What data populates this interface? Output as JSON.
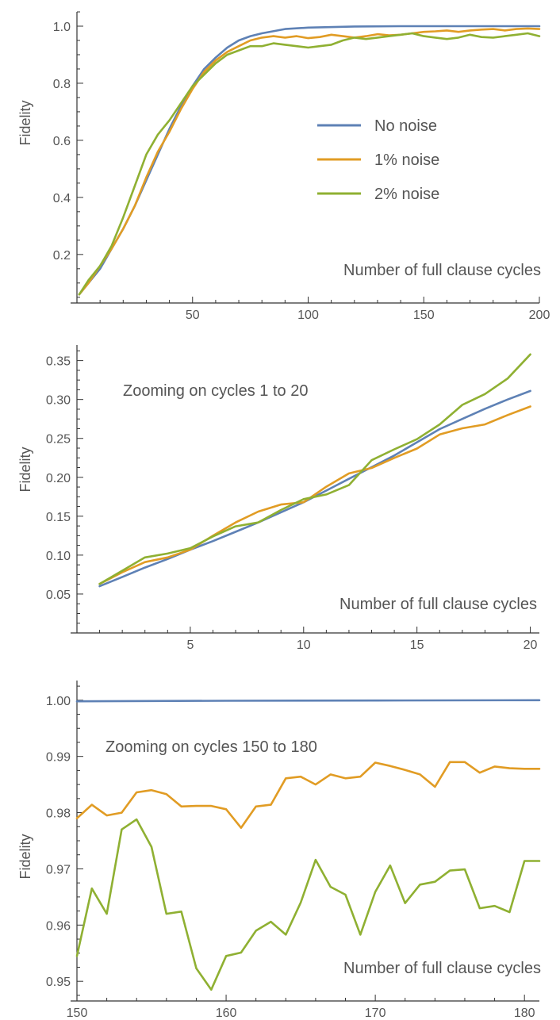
{
  "chart_data": [
    {
      "type": "line",
      "xlabel": "Number of full clause cycles",
      "ylabel": "Fidelity",
      "xlim": [
        0,
        200
      ],
      "ylim": [
        0.03,
        1.05
      ],
      "xticks": [
        50,
        100,
        150,
        200
      ],
      "yticks": [
        0.2,
        0.4,
        0.6,
        0.8,
        1.0
      ],
      "ytick_labels": [
        "0.2",
        "0.4",
        "0.6",
        "0.8",
        "1.0"
      ],
      "legend": {
        "position": "center-right",
        "entries": [
          "No noise",
          "1% noise",
          "2% noise"
        ]
      },
      "series": [
        {
          "name": "No noise",
          "color": "#5e81b5",
          "x": [
            1,
            5,
            10,
            15,
            20,
            25,
            30,
            35,
            40,
            45,
            50,
            55,
            60,
            65,
            70,
            75,
            80,
            90,
            100,
            120,
            140,
            160,
            180,
            200
          ],
          "y": [
            0.06,
            0.1,
            0.15,
            0.22,
            0.29,
            0.37,
            0.46,
            0.55,
            0.64,
            0.72,
            0.79,
            0.85,
            0.89,
            0.925,
            0.95,
            0.965,
            0.975,
            0.99,
            0.995,
            0.999,
            1.0,
            1.0,
            1.0,
            1.0
          ]
        },
        {
          "name": "1% noise",
          "color": "#e19c24",
          "x": [
            1,
            5,
            10,
            15,
            20,
            25,
            30,
            35,
            40,
            45,
            50,
            55,
            60,
            65,
            70,
            75,
            80,
            85,
            90,
            95,
            100,
            105,
            110,
            115,
            120,
            125,
            130,
            135,
            140,
            145,
            150,
            155,
            160,
            165,
            170,
            175,
            180,
            185,
            190,
            195,
            200
          ],
          "y": [
            0.06,
            0.1,
            0.16,
            0.22,
            0.29,
            0.37,
            0.47,
            0.56,
            0.63,
            0.71,
            0.78,
            0.84,
            0.88,
            0.91,
            0.93,
            0.95,
            0.96,
            0.965,
            0.96,
            0.965,
            0.958,
            0.962,
            0.97,
            0.965,
            0.96,
            0.965,
            0.972,
            0.968,
            0.97,
            0.975,
            0.98,
            0.982,
            0.985,
            0.98,
            0.985,
            0.988,
            0.99,
            0.985,
            0.99,
            0.992,
            0.99
          ]
        },
        {
          "name": "2% noise",
          "color": "#8fb032",
          "x": [
            1,
            5,
            10,
            15,
            20,
            25,
            30,
            35,
            40,
            45,
            50,
            55,
            60,
            65,
            70,
            75,
            80,
            85,
            90,
            95,
            100,
            105,
            110,
            115,
            120,
            125,
            130,
            135,
            140,
            145,
            150,
            155,
            160,
            165,
            170,
            175,
            180,
            185,
            190,
            195,
            200
          ],
          "y": [
            0.06,
            0.11,
            0.16,
            0.23,
            0.33,
            0.44,
            0.55,
            0.62,
            0.67,
            0.73,
            0.79,
            0.83,
            0.87,
            0.9,
            0.915,
            0.93,
            0.93,
            0.94,
            0.935,
            0.93,
            0.925,
            0.93,
            0.935,
            0.95,
            0.96,
            0.955,
            0.96,
            0.965,
            0.97,
            0.975,
            0.965,
            0.96,
            0.955,
            0.96,
            0.97,
            0.962,
            0.96,
            0.965,
            0.97,
            0.975,
            0.965
          ]
        }
      ],
      "annotations": [
        "Number of full clause cycles"
      ]
    },
    {
      "type": "line",
      "xlabel": "Number of full clause cycles",
      "ylabel": "Fidelity",
      "xlim": [
        0,
        20.4
      ],
      "ylim": [
        0.0,
        0.37
      ],
      "xticks": [
        5,
        10,
        15,
        20
      ],
      "yticks": [
        0.05,
        0.1,
        0.15,
        0.2,
        0.25,
        0.3,
        0.35
      ],
      "ytick_labels": [
        "0.05",
        "0.10",
        "0.15",
        "0.20",
        "0.25",
        "0.30",
        "0.35"
      ],
      "title": "Zooming on cycles 1 to 20",
      "series": [
        {
          "name": "No noise",
          "color": "#5e81b5",
          "x": [
            1,
            2,
            3,
            4,
            5,
            6,
            7,
            8,
            9,
            10,
            11,
            12,
            13,
            14,
            15,
            16,
            17,
            18,
            19,
            20
          ],
          "y": [
            0.06,
            0.072,
            0.084,
            0.095,
            0.107,
            0.118,
            0.13,
            0.142,
            0.155,
            0.168,
            0.183,
            0.198,
            0.213,
            0.228,
            0.245,
            0.262,
            0.275,
            0.288,
            0.3,
            0.311
          ]
        },
        {
          "name": "1% noise",
          "color": "#e19c24",
          "x": [
            1,
            2,
            3,
            4,
            5,
            6,
            7,
            8,
            9,
            10,
            11,
            12,
            13,
            14,
            15,
            16,
            17,
            18,
            19,
            20
          ],
          "y": [
            0.063,
            0.078,
            0.091,
            0.097,
            0.107,
            0.125,
            0.142,
            0.156,
            0.165,
            0.168,
            0.188,
            0.205,
            0.212,
            0.225,
            0.237,
            0.255,
            0.263,
            0.268,
            0.28,
            0.291
          ]
        },
        {
          "name": "2% noise",
          "color": "#8fb032",
          "x": [
            1,
            2,
            3,
            4,
            5,
            6,
            7,
            8,
            9,
            10,
            11,
            12,
            13,
            14,
            15,
            16,
            17,
            18,
            19,
            20
          ],
          "y": [
            0.063,
            0.08,
            0.097,
            0.102,
            0.109,
            0.124,
            0.137,
            0.142,
            0.158,
            0.172,
            0.178,
            0.19,
            0.222,
            0.236,
            0.249,
            0.268,
            0.293,
            0.307,
            0.327,
            0.358
          ]
        }
      ],
      "annotations": [
        "Number of full clause cycles"
      ]
    },
    {
      "type": "line",
      "xlabel": "Number of full clause cycles",
      "ylabel": "Fidelity",
      "xlim": [
        150,
        181
      ],
      "ylim": [
        0.9465,
        1.0035
      ],
      "xticks": [
        150,
        160,
        170,
        180
      ],
      "yticks": [
        0.95,
        0.96,
        0.97,
        0.98,
        0.99,
        1.0
      ],
      "ytick_labels": [
        "0.95",
        "0.96",
        "0.97",
        "0.98",
        "0.99",
        "1.00"
      ],
      "title": "Zooming on cycles 150 to 180",
      "series": [
        {
          "name": "No noise",
          "color": "#5e81b5",
          "x": [
            150,
            160,
            170,
            181
          ],
          "y": [
            0.9998,
            0.9999,
            0.99995,
            1.0
          ]
        },
        {
          "name": "1% noise",
          "color": "#e19c24",
          "x": [
            150,
            151,
            152,
            153,
            154,
            155,
            156,
            157,
            158,
            159,
            160,
            161,
            162,
            163,
            164,
            165,
            166,
            167,
            168,
            169,
            170,
            171,
            172,
            173,
            174,
            175,
            176,
            177,
            178,
            179,
            180,
            181
          ],
          "y": [
            0.979,
            0.9814,
            0.9795,
            0.98,
            0.9836,
            0.984,
            0.9833,
            0.9811,
            0.9812,
            0.9812,
            0.9806,
            0.9773,
            0.9811,
            0.9814,
            0.9861,
            0.9864,
            0.985,
            0.9868,
            0.9861,
            0.9864,
            0.9889,
            0.9883,
            0.9876,
            0.9868,
            0.9846,
            0.989,
            0.989,
            0.9871,
            0.9882,
            0.9879,
            0.9878,
            0.9878
          ]
        },
        {
          "name": "2% noise",
          "color": "#8fb032",
          "x": [
            150,
            151,
            152,
            153,
            154,
            155,
            156,
            157,
            158,
            159,
            160,
            161,
            162,
            163,
            164,
            165,
            166,
            167,
            168,
            169,
            170,
            171,
            172,
            173,
            174,
            175,
            176,
            177,
            178,
            179,
            180,
            181
          ],
          "y": [
            0.9545,
            0.9665,
            0.962,
            0.977,
            0.9788,
            0.9739,
            0.962,
            0.9624,
            0.9523,
            0.9485,
            0.9545,
            0.9551,
            0.959,
            0.9606,
            0.9583,
            0.964,
            0.9716,
            0.9668,
            0.9654,
            0.9583,
            0.9659,
            0.9706,
            0.9639,
            0.9672,
            0.9677,
            0.9697,
            0.9699,
            0.963,
            0.9634,
            0.9623,
            0.9714,
            0.9714
          ]
        }
      ],
      "annotations": [
        "Number of full clause cycles"
      ]
    }
  ]
}
